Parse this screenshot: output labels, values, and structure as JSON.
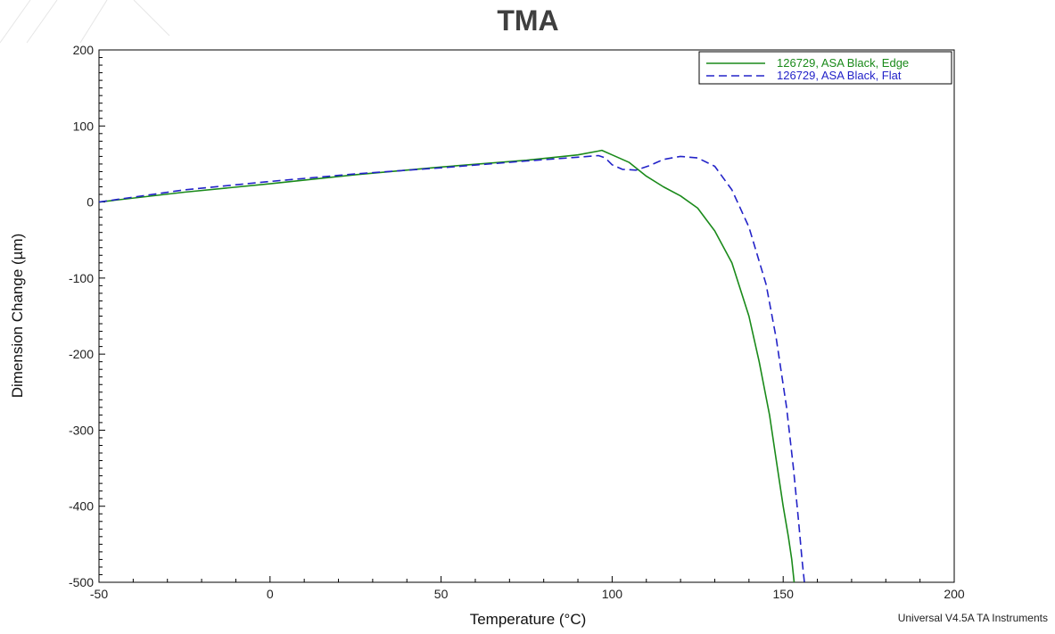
{
  "chart_data": {
    "type": "line",
    "title": "TMA",
    "xlabel": "Temperature (°C)",
    "ylabel": "Dimension Change (µm)",
    "xlim": [
      -50,
      200
    ],
    "ylim": [
      -500,
      200
    ],
    "xticks": [
      -50,
      0,
      50,
      100,
      150,
      200
    ],
    "yticks": [
      200,
      100,
      0,
      -100,
      -200,
      -300,
      -400,
      -500
    ],
    "xtick_labels": [
      "-50",
      "0",
      "50",
      "100",
      "150",
      "200"
    ],
    "ytick_labels": [
      "200",
      "100",
      "0",
      "-100",
      "-200",
      "-300",
      "-400",
      "-500"
    ],
    "grid": false,
    "legend_position": "top-right",
    "series": [
      {
        "name": "126729, ASA Black, Edge",
        "color": "#1a8a1a",
        "style": "solid",
        "x": [
          -50,
          -25,
          0,
          25,
          50,
          75,
          90,
          96,
          97,
          100,
          105,
          110,
          115,
          120,
          125,
          130,
          135,
          140,
          143,
          146,
          148,
          150,
          151.5,
          152.5,
          153.2
        ],
        "y": [
          0,
          13,
          24,
          36,
          46,
          55,
          62,
          67,
          68,
          62,
          52,
          34,
          20,
          8,
          -8,
          -38,
          -80,
          -150,
          -210,
          -280,
          -340,
          -400,
          -440,
          -470,
          -500
        ]
      },
      {
        "name": "126729, ASA Black, Flat",
        "color": "#2323c8",
        "style": "dashed",
        "x": [
          -50,
          -25,
          0,
          25,
          50,
          75,
          90,
          96,
          98,
          100,
          103,
          107,
          111,
          115,
          120,
          125,
          130,
          135,
          140,
          145,
          148,
          151,
          153,
          154.5,
          155.5,
          156.2
        ],
        "y": [
          0,
          16,
          27,
          37,
          45,
          54,
          59,
          61,
          58,
          49,
          43,
          42,
          48,
          56,
          60,
          58,
          47,
          16,
          -33,
          -108,
          -180,
          -270,
          -350,
          -420,
          -470,
          -500
        ]
      }
    ],
    "footer": "Universal V4.5A TA Instruments"
  }
}
